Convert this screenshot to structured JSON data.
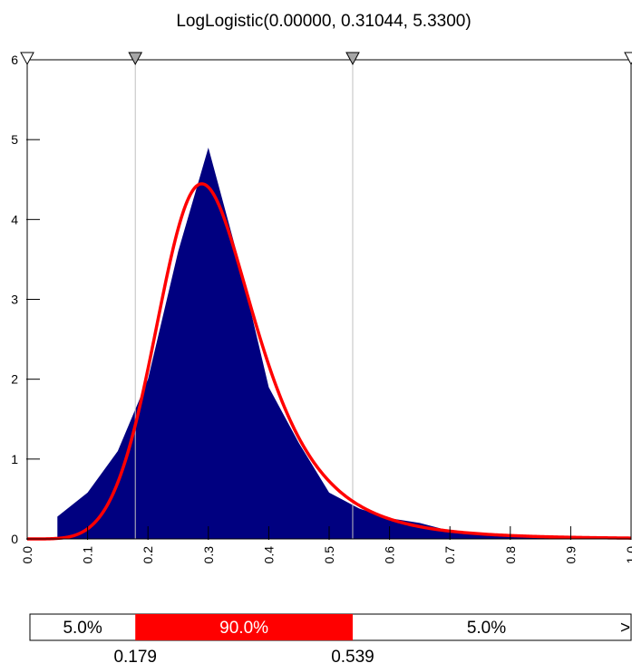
{
  "chart_data": {
    "type": "area",
    "title": "LogLogistic(0.00000, 0.31044, 5.3300)",
    "xlabel": "",
    "ylabel": "",
    "xlim": [
      0.0,
      1.0
    ],
    "ylim": [
      0,
      6
    ],
    "x_ticks": [
      "0.0",
      "0.1",
      "0.2",
      "0.3",
      "0.4",
      "0.5",
      "0.6",
      "0.7",
      "0.8",
      "0.9",
      "1.0"
    ],
    "y_ticks": [
      "0",
      "1",
      "2",
      "3",
      "4",
      "5",
      "6"
    ],
    "grid": false,
    "colors": {
      "histogram": "#000080",
      "fit_curve": "#ff0000",
      "middle_band": "#ff0000",
      "marker_gray": "#a6a6a6",
      "marker_white": "#ffffff",
      "delimiter_line": "#c0c0c0"
    },
    "series": [
      {
        "type": "area",
        "x": [
          0.05,
          0.1,
          0.15,
          0.2,
          0.25,
          0.3,
          0.35,
          0.4,
          0.45,
          0.5,
          0.55,
          0.6,
          0.65,
          0.7,
          0.75,
          0.8,
          0.85,
          0.9,
          0.95,
          1.0
        ],
        "y": [
          0.28,
          0.58,
          1.1,
          2.0,
          3.6,
          4.9,
          3.5,
          1.9,
          1.2,
          0.58,
          0.38,
          0.26,
          0.2,
          0.1,
          0.07,
          0.05,
          0.04,
          0.03,
          0.02,
          0.02
        ]
      },
      {
        "type": "line",
        "loglogistic": {
          "gamma": 0.0,
          "beta": 0.31044,
          "alpha": 5.33
        }
      }
    ],
    "delimiters": [
      {
        "x": 0.179,
        "label": "0.179"
      },
      {
        "x": 0.539,
        "label": "0.539"
      }
    ],
    "probability_bar": {
      "left": "5.0%",
      "middle": "90.0%",
      "right": "5.0%",
      "overflow_mark": ">"
    }
  }
}
